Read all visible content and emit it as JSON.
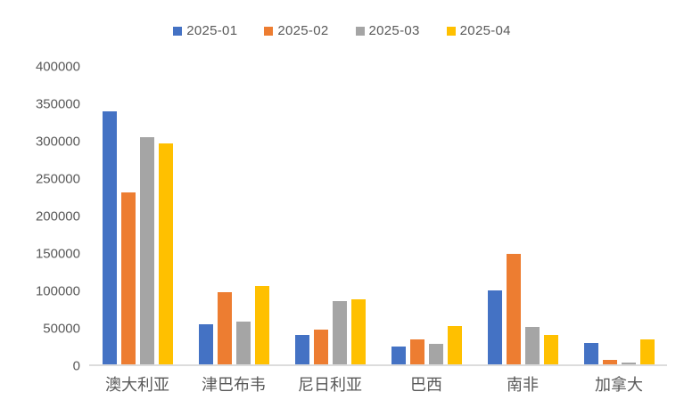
{
  "chart_data": {
    "type": "bar",
    "title": "",
    "categories": [
      "澳大利亚",
      "津巴布韦",
      "尼日利亚",
      "巴西",
      "南非",
      "加拿大"
    ],
    "series": [
      {
        "name": "2025-01",
        "color": "#4472C4",
        "values": [
          340000,
          54000,
          39000,
          24000,
          100000,
          29000
        ]
      },
      {
        "name": "2025-02",
        "color": "#ED7D31",
        "values": [
          231000,
          97000,
          47000,
          33000,
          148000,
          6000
        ]
      },
      {
        "name": "2025-03",
        "color": "#A5A5A5",
        "values": [
          306000,
          58000,
          85000,
          28000,
          50000,
          2000
        ]
      },
      {
        "name": "2025-04",
        "color": "#FFC000",
        "values": [
          297000,
          105000,
          88000,
          52000,
          39000,
          33000
        ]
      }
    ],
    "ylim": [
      0,
      400000
    ],
    "ytick_step": 50000,
    "yticks": [
      0,
      50000,
      100000,
      150000,
      200000,
      250000,
      300000,
      350000,
      400000
    ],
    "legend_position": "top-center",
    "grid": false,
    "axis_line_color": "#DCDCDC",
    "text_color": "#595959",
    "background_color": "#FFFFFF"
  }
}
